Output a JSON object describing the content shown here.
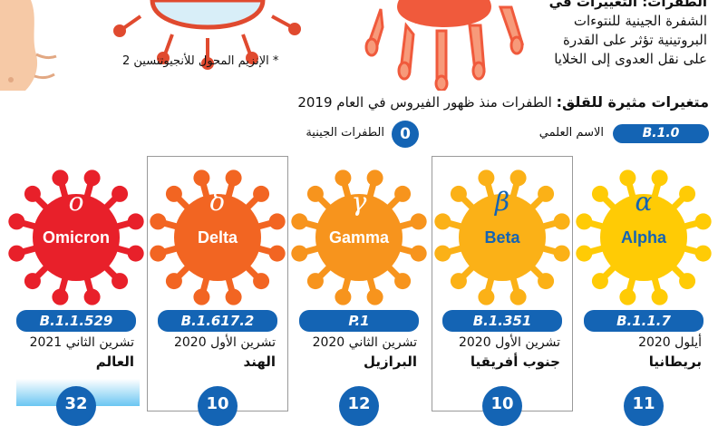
{
  "intro": {
    "lines": [
      "الطفرات: التغييرات في",
      "الشفرة الجينية للنتوءات",
      "البروتينية تؤثر على القدرة",
      "على نقل العدوى إلى الخلايا"
    ],
    "footnote": "* الإنزيم المحول للأنجيوتنسين 2"
  },
  "heading": {
    "bold": "متغيرات مثيرة للقلق:",
    "rest": " الطفرات منذ ظهور الفيروس في العام 2019"
  },
  "legend": {
    "code_sample": "B.1.0",
    "code_label": "الاسم العلمي",
    "mutations_sample": "0",
    "mutations_label": "الطفرات الجينية"
  },
  "colors": {
    "pill_blue": "#1464b4",
    "omicron": "#e8202a",
    "delta": "#f26522",
    "gamma": "#f7941d",
    "beta": "#fbb117",
    "alpha": "#ffcb05"
  },
  "variants": [
    {
      "name": "Omicron",
      "greek": "ο",
      "code": "B.1.1.529",
      "date": "تشرين الثاني 2021",
      "country": "العالم",
      "mutations": "32"
    },
    {
      "name": "Delta",
      "greek": "δ",
      "code": "B.1.617.2",
      "date": "تشرين الأول 2020",
      "country": "الهند",
      "mutations": "10"
    },
    {
      "name": "Gamma",
      "greek": "γ",
      "code": "P.1",
      "date": "تشرين الثاني 2020",
      "country": "البرازيل",
      "mutations": "12"
    },
    {
      "name": "Beta",
      "greek": "β",
      "code": "B.1.351",
      "date": "تشرين الأول 2020",
      "country": "جنوب أفريقيا",
      "mutations": "10"
    },
    {
      "name": "Alpha",
      "greek": "α",
      "code": "B.1.1.7",
      "date": "أيلول 2020",
      "country": "بريطانيا",
      "mutations": "11"
    }
  ]
}
